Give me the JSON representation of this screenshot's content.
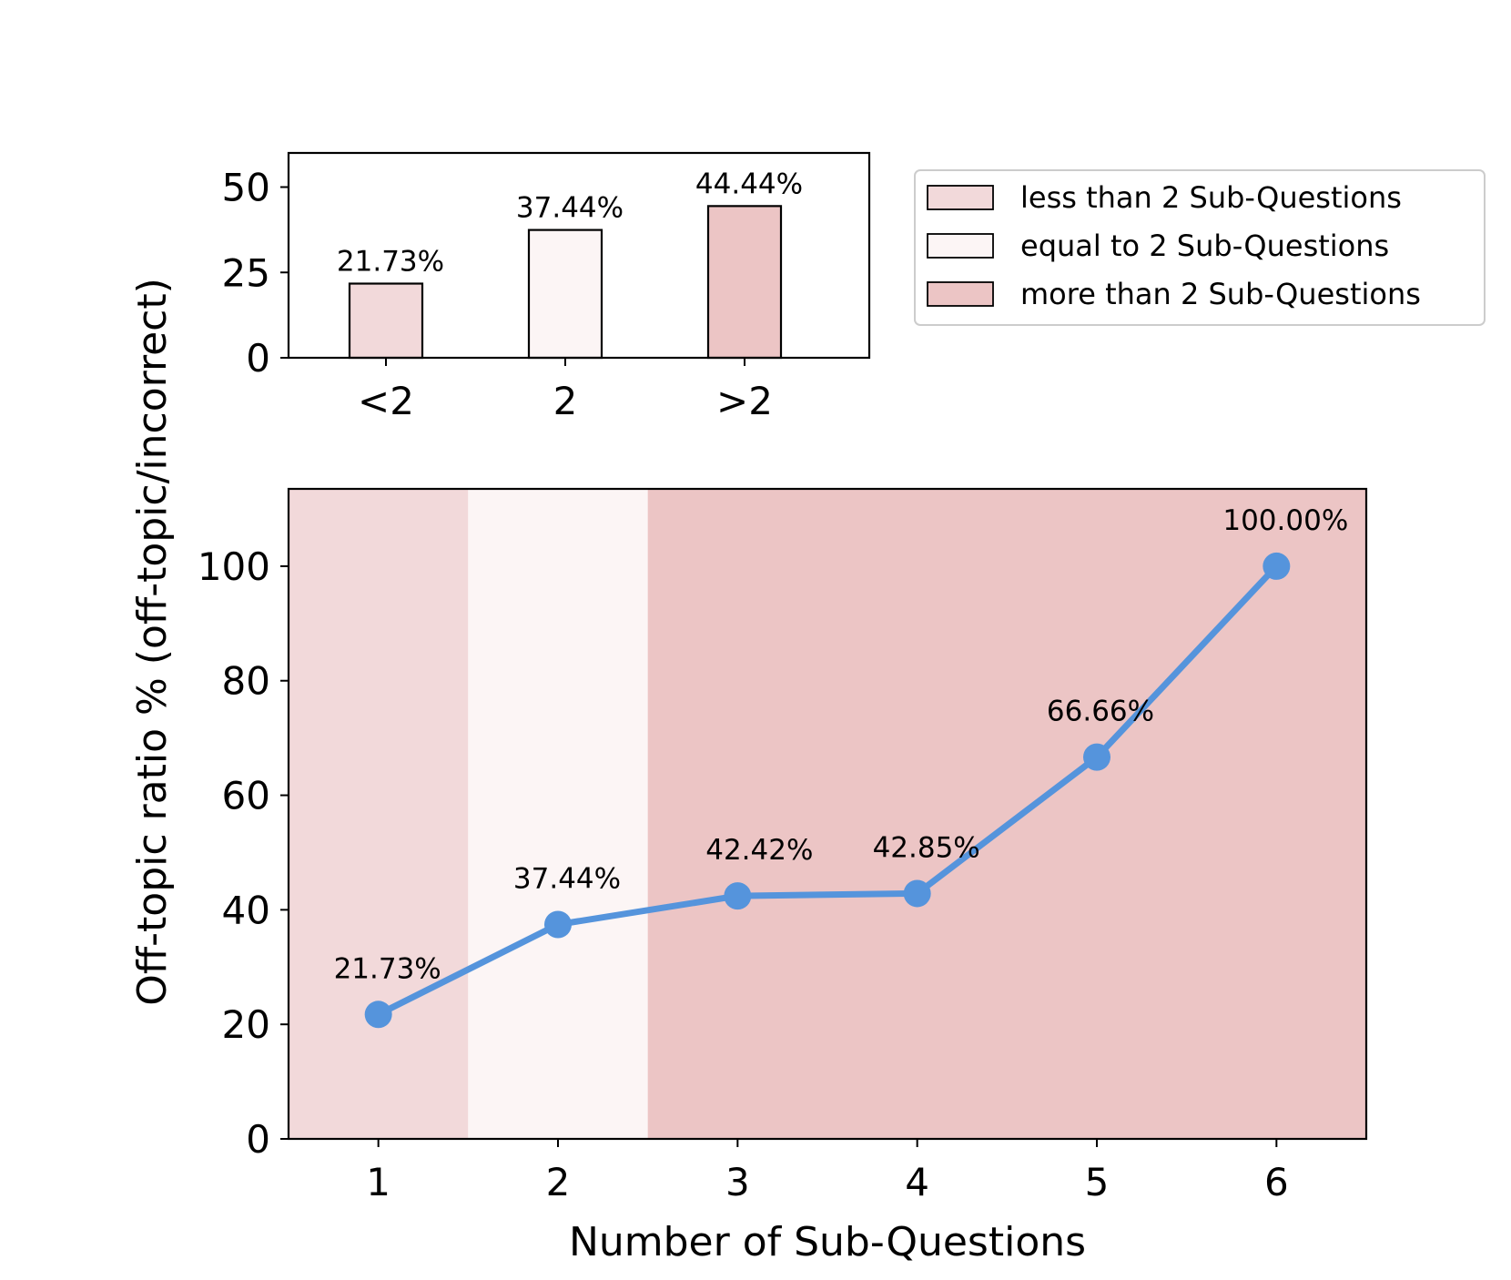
{
  "colors": {
    "less": "#f2d9da",
    "equal": "#fcf5f5",
    "more": "#ecc5c5",
    "line": "#5594dc",
    "frame": "#000000",
    "legend_border": "#cccccc"
  },
  "chart_data": [
    {
      "type": "bar",
      "title": "",
      "categories": [
        "<2",
        "2",
        ">2"
      ],
      "values": [
        21.73,
        37.44,
        44.44
      ],
      "value_labels": [
        "21.73%",
        "37.44%",
        "44.44%"
      ],
      "series_keys": [
        "less",
        "equal",
        "more"
      ],
      "ylim": [
        0,
        60
      ],
      "yticks": [
        0,
        25,
        50
      ],
      "ytick_labels": [
        "0",
        "25",
        "50"
      ],
      "grid": false
    },
    {
      "type": "line",
      "title": "",
      "x": [
        1,
        2,
        3,
        4,
        5,
        6
      ],
      "xtick_labels": [
        "1",
        "2",
        "3",
        "4",
        "5",
        "6"
      ],
      "values": [
        21.73,
        37.44,
        42.42,
        42.85,
        66.66,
        100.0
      ],
      "value_labels": [
        "21.73%",
        "37.44%",
        "42.42%",
        "42.85%",
        "66.66%",
        "100.00%"
      ],
      "xlim": [
        0.5,
        6.5
      ],
      "ylim": [
        0,
        113.5
      ],
      "yticks": [
        0,
        20,
        40,
        60,
        80,
        100
      ],
      "ytick_labels": [
        "0",
        "20",
        "40",
        "60",
        "80",
        "100"
      ],
      "background_regions": [
        {
          "from": 0.5,
          "to": 1.5,
          "key": "less"
        },
        {
          "from": 1.5,
          "to": 2.5,
          "key": "equal"
        },
        {
          "from": 2.5,
          "to": 6.5,
          "key": "more"
        }
      ],
      "xlabel": "Number of Sub-Questions",
      "grid": false
    }
  ],
  "shared_ylabel": "Off-topic ratio % (off-topic/incorrect)",
  "legend": {
    "position": "top-right",
    "entries": [
      {
        "label": "less than 2 Sub-Questions",
        "key": "less"
      },
      {
        "label": "equal to 2 Sub-Questions",
        "key": "equal"
      },
      {
        "label": "more than 2 Sub-Questions",
        "key": "more"
      }
    ]
  }
}
